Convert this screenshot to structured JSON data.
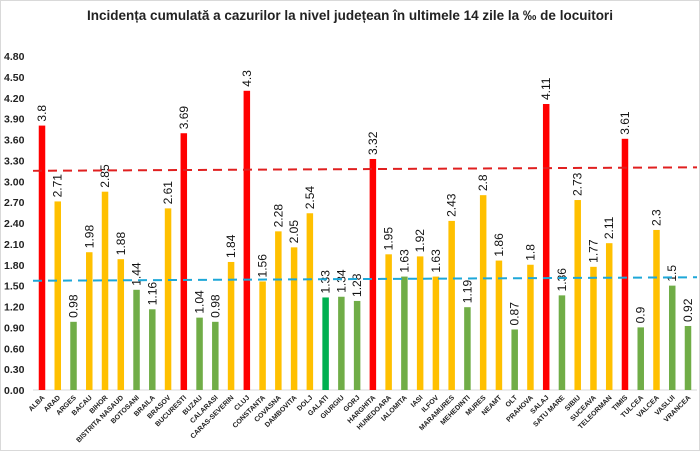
{
  "chart_data": {
    "type": "bar",
    "title": "Incidența cumulată a cazurilor la nivel județean în ultimele 14 zile la ‰ de locuitori",
    "xlabel": "",
    "ylabel": "",
    "ylim": [
      0,
      4.8
    ],
    "yticks": [
      "0.00",
      "0.30",
      "0.60",
      "0.90",
      "1.20",
      "1.50",
      "1.80",
      "2.10",
      "2.40",
      "2.70",
      "3.00",
      "3.30",
      "3.60",
      "3.90",
      "4.20",
      "4.50",
      "4.80"
    ],
    "grid": false,
    "categories": [
      "ALBA",
      "ARAD",
      "ARGES",
      "BACAU",
      "BIHOR",
      "BISTRITA NASAUD",
      "BOTOSANI",
      "BRAILA",
      "BRASOV",
      "BUCURESTI",
      "BUZAU",
      "CALARASI",
      "CARAS-SEVERIN",
      "CLUJ",
      "CONSTANTA",
      "COVASNA",
      "DAMBOVITA",
      "DOLJ",
      "GALATI",
      "GIURGIU",
      "GORJ",
      "HARGHITA",
      "HUNEDOARA",
      "IALOMITA",
      "IASI",
      "ILFOV",
      "MARAMURES",
      "MEHEDINTI",
      "MURES",
      "NEAMT",
      "OLT",
      "PRAHOVA",
      "SALAJ",
      "SATU MARE",
      "SIBIU",
      "SUCEAVA",
      "TELEORMAN",
      "TIMIS",
      "TULCEA",
      "VALCEA",
      "VASLUI",
      "VRANCEA"
    ],
    "values": [
      3.8,
      2.71,
      0.98,
      1.98,
      2.85,
      1.88,
      1.44,
      1.16,
      2.61,
      3.69,
      1.04,
      0.98,
      1.84,
      4.3,
      1.56,
      2.28,
      2.05,
      2.54,
      1.33,
      1.34,
      1.28,
      3.32,
      1.95,
      1.63,
      1.92,
      1.63,
      2.43,
      1.19,
      2.8,
      1.86,
      0.87,
      1.8,
      4.11,
      1.36,
      2.73,
      1.77,
      2.11,
      3.61,
      0.9,
      2.3,
      1.5,
      0.92
    ],
    "bar_colors": [
      "red",
      "yellow",
      "green",
      "yellow",
      "yellow",
      "yellow",
      "green",
      "green",
      "yellow",
      "red",
      "green",
      "green",
      "yellow",
      "red",
      "yellow",
      "yellow",
      "yellow",
      "yellow",
      "darkgreen",
      "green",
      "green",
      "red",
      "yellow",
      "green",
      "yellow",
      "yellow",
      "yellow",
      "green",
      "yellow",
      "yellow",
      "green",
      "yellow",
      "red",
      "green",
      "yellow",
      "yellow",
      "yellow",
      "red",
      "green",
      "yellow",
      "green",
      "green"
    ],
    "colors": {
      "red": "#FF0000",
      "yellow": "#FFC000",
      "green": "#70AD47",
      "darkgreen": "#00B050",
      "upper_line": "#E02020",
      "lower_line": "#1EA7D8"
    },
    "reference_lines": [
      {
        "style": "dashed",
        "color": "upper_line",
        "y_start": 3.15,
        "y_end": 3.2
      },
      {
        "style": "dashed",
        "color": "lower_line",
        "y_start": 1.57,
        "y_end": 1.62
      }
    ]
  }
}
